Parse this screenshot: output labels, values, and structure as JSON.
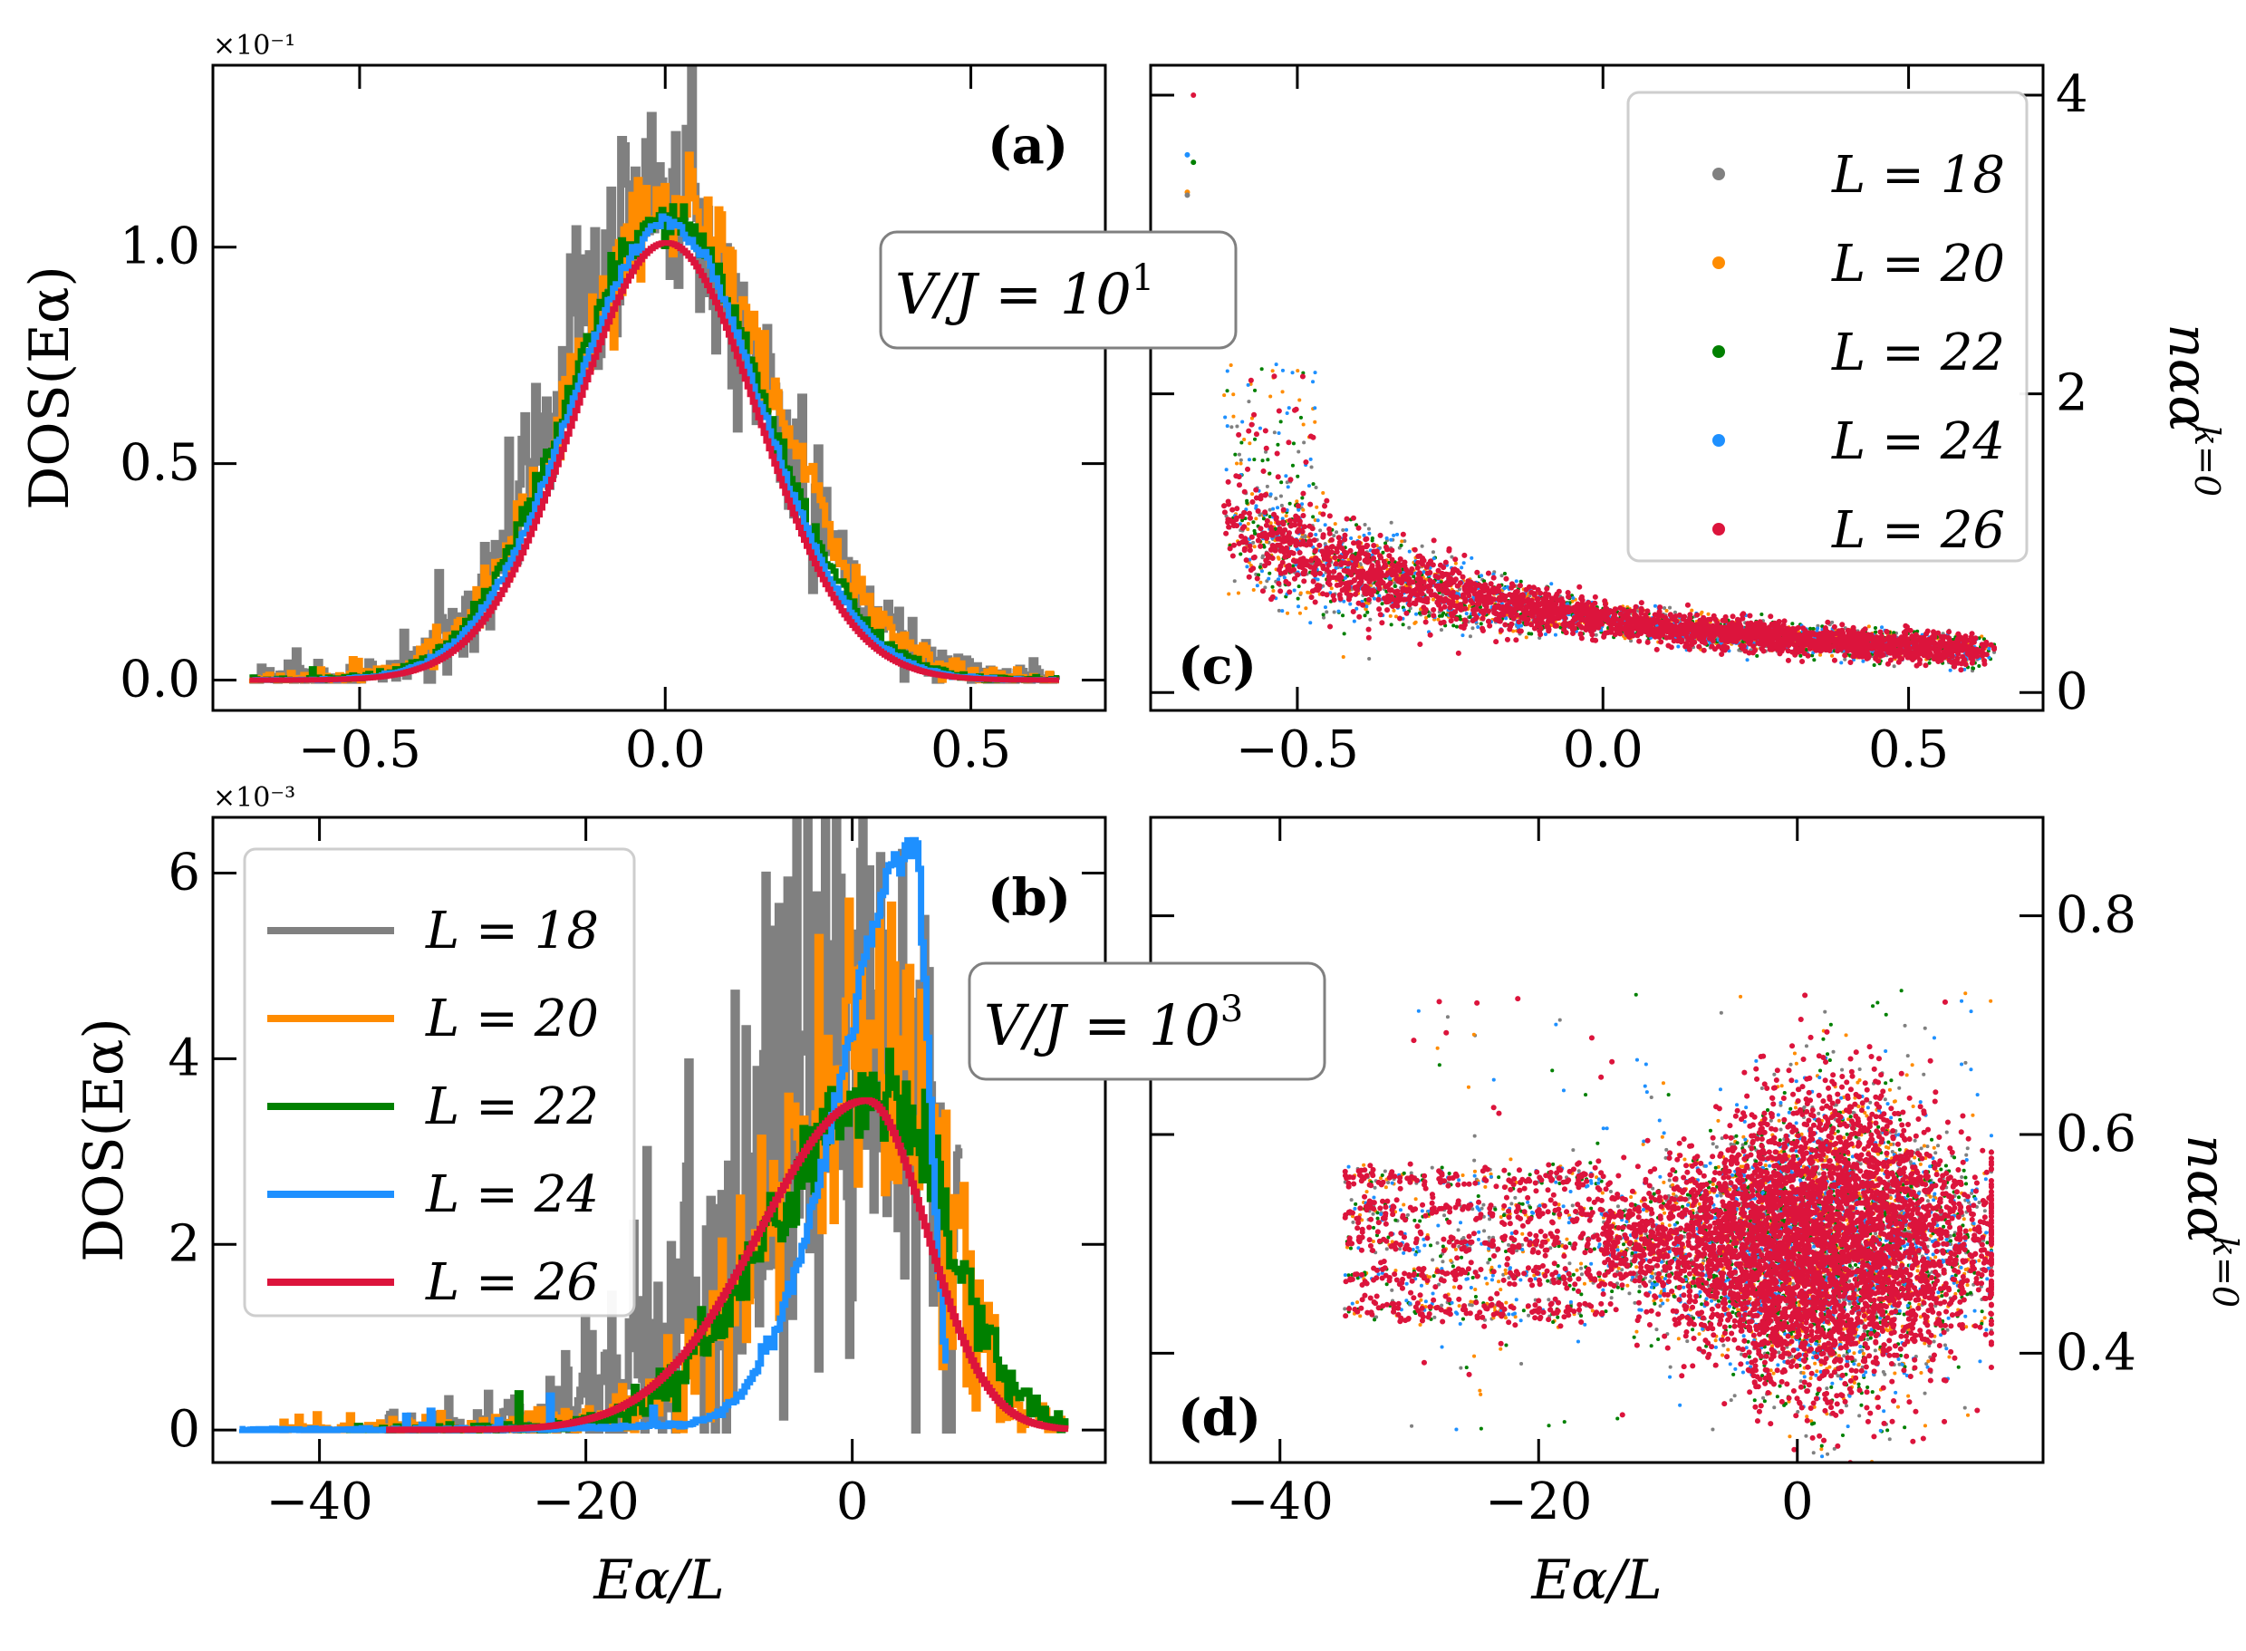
{
  "figure": {
    "series_colors": {
      "L = 18": "#808080",
      "L = 20": "#ff8c00",
      "L = 22": "#008000",
      "L = 24": "#1e90ff",
      "L = 26": "#dc143c"
    }
  },
  "chart_data": [
    {
      "panel": "a",
      "type": "line",
      "tag": "(a)",
      "annotation": "V/J = 10^1",
      "annotation_display": "V/J = 10",
      "annotation_exp": "1",
      "xlabel": "",
      "ylabel": "DOS(E_α)",
      "ylabel_display": "DOS(Eα)",
      "exponent_label": "×10⁻¹",
      "xlim": [
        -0.74,
        0.72
      ],
      "ylim": [
        -0.07,
        1.42
      ],
      "xticks": [
        -0.5,
        0.0,
        0.5
      ],
      "xtick_labels": [
        "−0.5",
        "0.0",
        "0.5"
      ],
      "yticks": [
        0.0,
        0.5,
        1.0
      ],
      "ytick_labels": [
        "0.0",
        "0.5",
        "1.0"
      ],
      "series": [
        {
          "name": "L = 18",
          "color": "#808080",
          "mu": 0.0,
          "sigma": 0.17,
          "peak": 1.1,
          "noise": 0.13
        },
        {
          "name": "L = 20",
          "color": "#ff8c00",
          "mu": 0.01,
          "sigma": 0.165,
          "peak": 1.09,
          "noise": 0.06
        },
        {
          "name": "L = 22",
          "color": "#008000",
          "mu": 0.0,
          "sigma": 0.16,
          "peak": 1.07,
          "noise": 0.025
        },
        {
          "name": "L = 24",
          "color": "#1e90ff",
          "mu": 0.0,
          "sigma": 0.155,
          "peak": 1.05,
          "noise": 0.01
        },
        {
          "name": "L = 26",
          "color": "#dc143c",
          "mu": 0.0,
          "sigma": 0.15,
          "peak": 1.01,
          "noise": 0.0
        }
      ]
    },
    {
      "panel": "b",
      "type": "line",
      "tag": "(b)",
      "annotation": "V/J = 10^3",
      "annotation_display": "V/J = 10",
      "annotation_exp": "3",
      "xlabel": "E_α/L",
      "xlabel_display": "Eα/L",
      "ylabel": "DOS(E_α)",
      "ylabel_display": "DOS(Eα)",
      "exponent_label": "×10⁻³",
      "xlim": [
        -48,
        19
      ],
      "ylim": [
        -0.35,
        6.6
      ],
      "xticks": [
        -40,
        -20,
        0
      ],
      "xtick_labels": [
        "−40",
        "−20",
        "0"
      ],
      "yticks": [
        0,
        2,
        4,
        6
      ],
      "ytick_labels": [
        "0",
        "2",
        "4",
        "6"
      ],
      "legend": {
        "position": "upper-left",
        "entries": [
          "L = 18",
          "L = 20",
          "L = 22",
          "L = 24",
          "L = 26"
        ]
      },
      "series": [
        {
          "name": "L = 18",
          "color": "#808080",
          "peak_x": 2,
          "peak": 4.6,
          "left_w": 9,
          "right_w": 4.5,
          "noise": 0.9,
          "xmin": -35,
          "xmax": 8
        },
        {
          "name": "L = 20",
          "color": "#ff8c00",
          "peak_x": 3,
          "peak": 4.3,
          "left_w": 8,
          "right_w": 4,
          "noise": 0.45,
          "xmin": -43,
          "xmax": 16
        },
        {
          "name": "L = 22",
          "color": "#008000",
          "peak_x": 2,
          "peak": 3.6,
          "left_w": 8,
          "right_w": 5,
          "noise": 0.15,
          "xmin": -38,
          "xmax": 16
        },
        {
          "name": "L = 24",
          "color": "#1e90ff",
          "peak_x": 4.5,
          "peak": 6.3,
          "left_w": 5.5,
          "right_w": 1.2,
          "noise": 0.05,
          "xmin": -46,
          "xmax": 7
        },
        {
          "name": "L = 26",
          "color": "#dc143c",
          "peak_x": 1,
          "peak": 3.55,
          "left_w": 8,
          "right_w": 4.5,
          "noise": 0.0,
          "xmin": -35,
          "xmax": 16
        }
      ]
    },
    {
      "panel": "c",
      "type": "scatter",
      "tag": "(c)",
      "xlabel": "",
      "ylabel": "n_αα^{k=0}",
      "ylabel_display": "nαα",
      "ylabel_sup": "k=0",
      "xlim": [
        -0.74,
        0.72
      ],
      "ylim": [
        -0.12,
        4.2
      ],
      "xticks": [
        -0.5,
        0.0,
        0.5
      ],
      "xtick_labels": [
        "−0.5",
        "0.0",
        "0.5"
      ],
      "yticks": [
        0,
        2,
        4
      ],
      "ytick_labels": [
        "0",
        "2",
        "4"
      ],
      "legend": {
        "position": "upper-right",
        "entries": [
          "L = 18",
          "L = 20",
          "L = 22",
          "L = 24",
          "L = 26"
        ]
      },
      "series": [
        "L = 18",
        "L = 20",
        "L = 22",
        "L = 24",
        "L = 26"
      ]
    },
    {
      "panel": "d",
      "type": "scatter",
      "tag": "(d)",
      "xlabel": "E_α/L",
      "xlabel_display": "Eα/L",
      "ylabel": "n_αα^{k=0}",
      "ylabel_display": "nαα",
      "ylabel_sup": "k=0",
      "xlim": [
        -50,
        19
      ],
      "ylim": [
        0.3,
        0.89
      ],
      "xticks": [
        -40,
        -20,
        0
      ],
      "xtick_labels": [
        "−40",
        "−20",
        "0"
      ],
      "yticks": [
        0.4,
        0.6,
        0.8
      ],
      "ytick_labels": [
        "0.4",
        "0.6",
        "0.8"
      ],
      "series": [
        "L = 18",
        "L = 20",
        "L = 22",
        "L = 24",
        "L = 26"
      ]
    }
  ]
}
